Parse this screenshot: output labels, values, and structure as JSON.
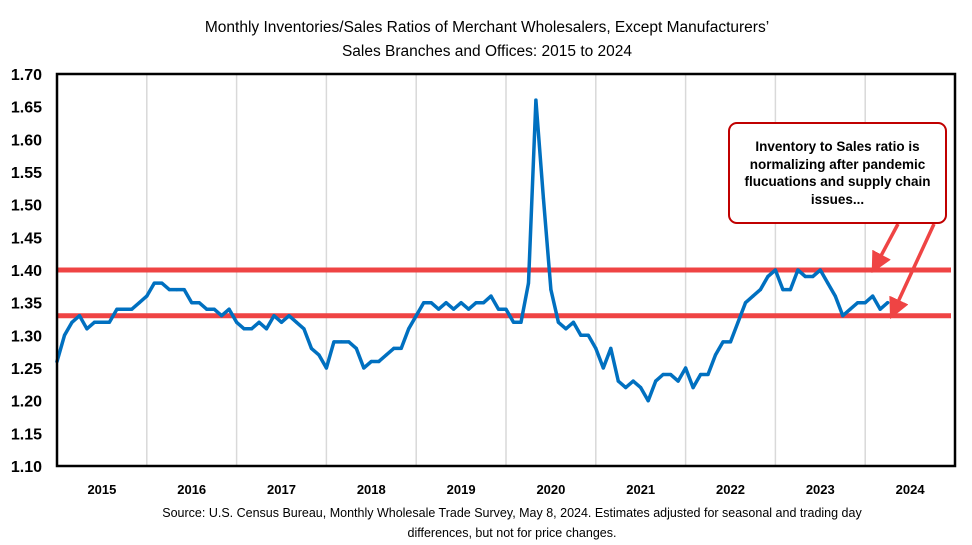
{
  "chart_data": {
    "type": "line",
    "title_lines": [
      "Monthly Inventories/Sales Ratios of Merchant Wholesalers, Except Manufacturers’",
      "Sales Branches and Offices: 2015 to 2024"
    ],
    "xlabel": "",
    "ylabel": "",
    "x_start": "2015-01",
    "x_frequency": "monthly",
    "x_range_years": [
      2015,
      2025
    ],
    "x_tick_labels": [
      "2015",
      "2016",
      "2017",
      "2018",
      "2019",
      "2020",
      "2021",
      "2022",
      "2023",
      "2024"
    ],
    "ylim": [
      1.1,
      1.7
    ],
    "y_tick_labels": [
      "1.10",
      "1.15",
      "1.20",
      "1.25",
      "1.30",
      "1.35",
      "1.40",
      "1.45",
      "1.50",
      "1.55",
      "1.60",
      "1.65",
      "1.70"
    ],
    "grid": "vertical-year-lines",
    "series": [
      {
        "name": "Inventories/Sales Ratio",
        "color": "#0070c0",
        "values": [
          1.26,
          1.3,
          1.32,
          1.33,
          1.31,
          1.32,
          1.32,
          1.32,
          1.34,
          1.34,
          1.34,
          1.35,
          1.36,
          1.38,
          1.38,
          1.37,
          1.37,
          1.37,
          1.35,
          1.35,
          1.34,
          1.34,
          1.33,
          1.34,
          1.32,
          1.31,
          1.31,
          1.32,
          1.31,
          1.33,
          1.32,
          1.33,
          1.32,
          1.31,
          1.28,
          1.27,
          1.25,
          1.29,
          1.29,
          1.29,
          1.28,
          1.25,
          1.26,
          1.26,
          1.27,
          1.28,
          1.28,
          1.31,
          1.33,
          1.35,
          1.35,
          1.34,
          1.35,
          1.34,
          1.35,
          1.34,
          1.35,
          1.35,
          1.36,
          1.34,
          1.34,
          1.32,
          1.32,
          1.38,
          1.66,
          1.51,
          1.37,
          1.32,
          1.31,
          1.32,
          1.3,
          1.3,
          1.28,
          1.25,
          1.28,
          1.23,
          1.22,
          1.23,
          1.22,
          1.2,
          1.23,
          1.24,
          1.24,
          1.23,
          1.25,
          1.22,
          1.24,
          1.24,
          1.27,
          1.29,
          1.29,
          1.32,
          1.35,
          1.36,
          1.37,
          1.39,
          1.4,
          1.37,
          1.37,
          1.4,
          1.39,
          1.39,
          1.4,
          1.38,
          1.36,
          1.33,
          1.34,
          1.35,
          1.35,
          1.36,
          1.34,
          1.35
        ]
      }
    ],
    "reference_lines": [
      {
        "name": "upper-band",
        "value": 1.4,
        "color": "#ef4444"
      },
      {
        "name": "lower-band",
        "value": 1.33,
        "color": "#ef4444"
      }
    ],
    "annotation": {
      "text": "Inventory to Sales ratio is normalizing after pandemic flucuations and supply chain issues...",
      "border_color": "#c00000",
      "arrow_color": "#ef4444",
      "arrows_point_to": [
        "upper-band",
        "lower-band"
      ]
    },
    "source_lines": [
      "Source: U.S. Census Bureau, Monthly Wholesale Trade Survey, May 8, 2024. Estimates adjusted for seasonal and trading day",
      "differences, but not for price changes."
    ],
    "legend": "none"
  }
}
